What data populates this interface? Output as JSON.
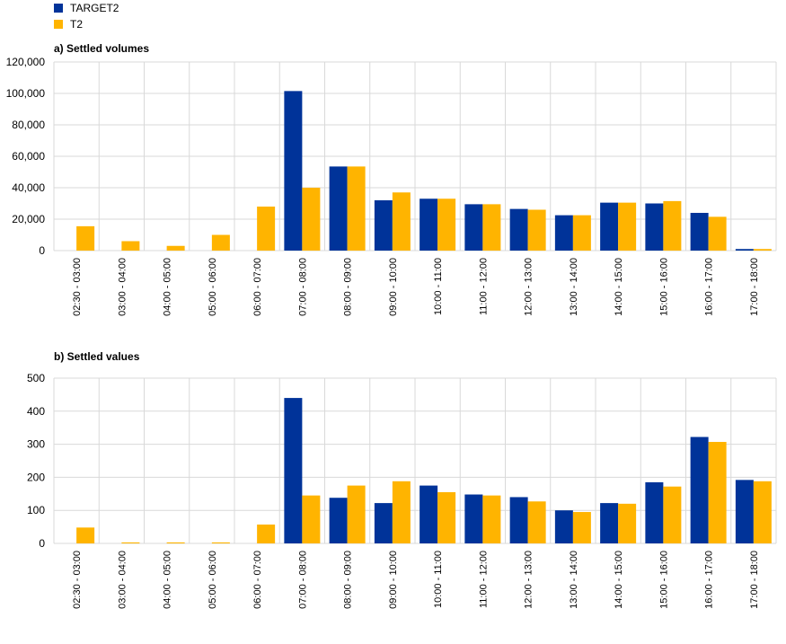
{
  "legend": [
    {
      "name": "TARGET2",
      "color": "#003399"
    },
    {
      "name": "T2",
      "color": "#FFB400"
    }
  ],
  "chart_data": [
    {
      "type": "bar",
      "title": "a) Settled volumes",
      "categories": [
        "02:30 - 03:00",
        "03:00 - 04:00",
        "04:00 - 05:00",
        "05:00 - 06:00",
        "06:00 - 07:00",
        "07:00 - 08:00",
        "08:00 - 09:00",
        "09:00 - 10:00",
        "10:00 - 11:00",
        "11:00 - 12:00",
        "12:00 - 13:00",
        "13:00 - 14:00",
        "14:00 - 15:00",
        "15:00 - 16:00",
        "16:00 - 17:00",
        "17:00 - 18:00"
      ],
      "series": [
        {
          "name": "TARGET2",
          "color": "#003399",
          "values": [
            0,
            0,
            0,
            0,
            0,
            101500,
            53500,
            32000,
            33000,
            29500,
            26500,
            22500,
            30500,
            30000,
            24000,
            1000
          ]
        },
        {
          "name": "T2",
          "color": "#FFB400",
          "values": [
            15500,
            6000,
            3000,
            10000,
            28000,
            40000,
            53500,
            37000,
            33000,
            29500,
            26000,
            22500,
            30500,
            31500,
            21500,
            1000
          ]
        }
      ],
      "ylim": [
        0,
        120000
      ],
      "yticks": [
        "0",
        "20,000",
        "40,000",
        "60,000",
        "80,000",
        "100,000",
        "120,000"
      ],
      "grid": true
    },
    {
      "type": "bar",
      "title": "b) Settled values",
      "categories": [
        "02:30 - 03:00",
        "03:00 - 04:00",
        "04:00 - 05:00",
        "05:00 - 06:00",
        "06:00 - 07:00",
        "07:00 - 08:00",
        "08:00 - 09:00",
        "09:00 - 10:00",
        "10:00 - 11:00",
        "11:00 - 12:00",
        "12:00 - 13:00",
        "13:00 - 14:00",
        "14:00 - 15:00",
        "15:00 - 16:00",
        "16:00 - 17:00",
        "17:00 - 18:00"
      ],
      "series": [
        {
          "name": "TARGET2",
          "color": "#003399",
          "values": [
            0,
            0,
            0,
            0,
            0,
            440,
            138,
            122,
            175,
            148,
            140,
            100,
            122,
            185,
            322,
            192
          ]
        },
        {
          "name": "T2",
          "color": "#FFB400",
          "values": [
            48,
            3,
            3,
            3,
            57,
            145,
            175,
            188,
            155,
            145,
            127,
            95,
            120,
            172,
            307,
            188
          ]
        }
      ],
      "ylim": [
        0,
        500
      ],
      "yticks": [
        "0",
        "100",
        "200",
        "300",
        "400",
        "500"
      ],
      "grid": true
    }
  ]
}
